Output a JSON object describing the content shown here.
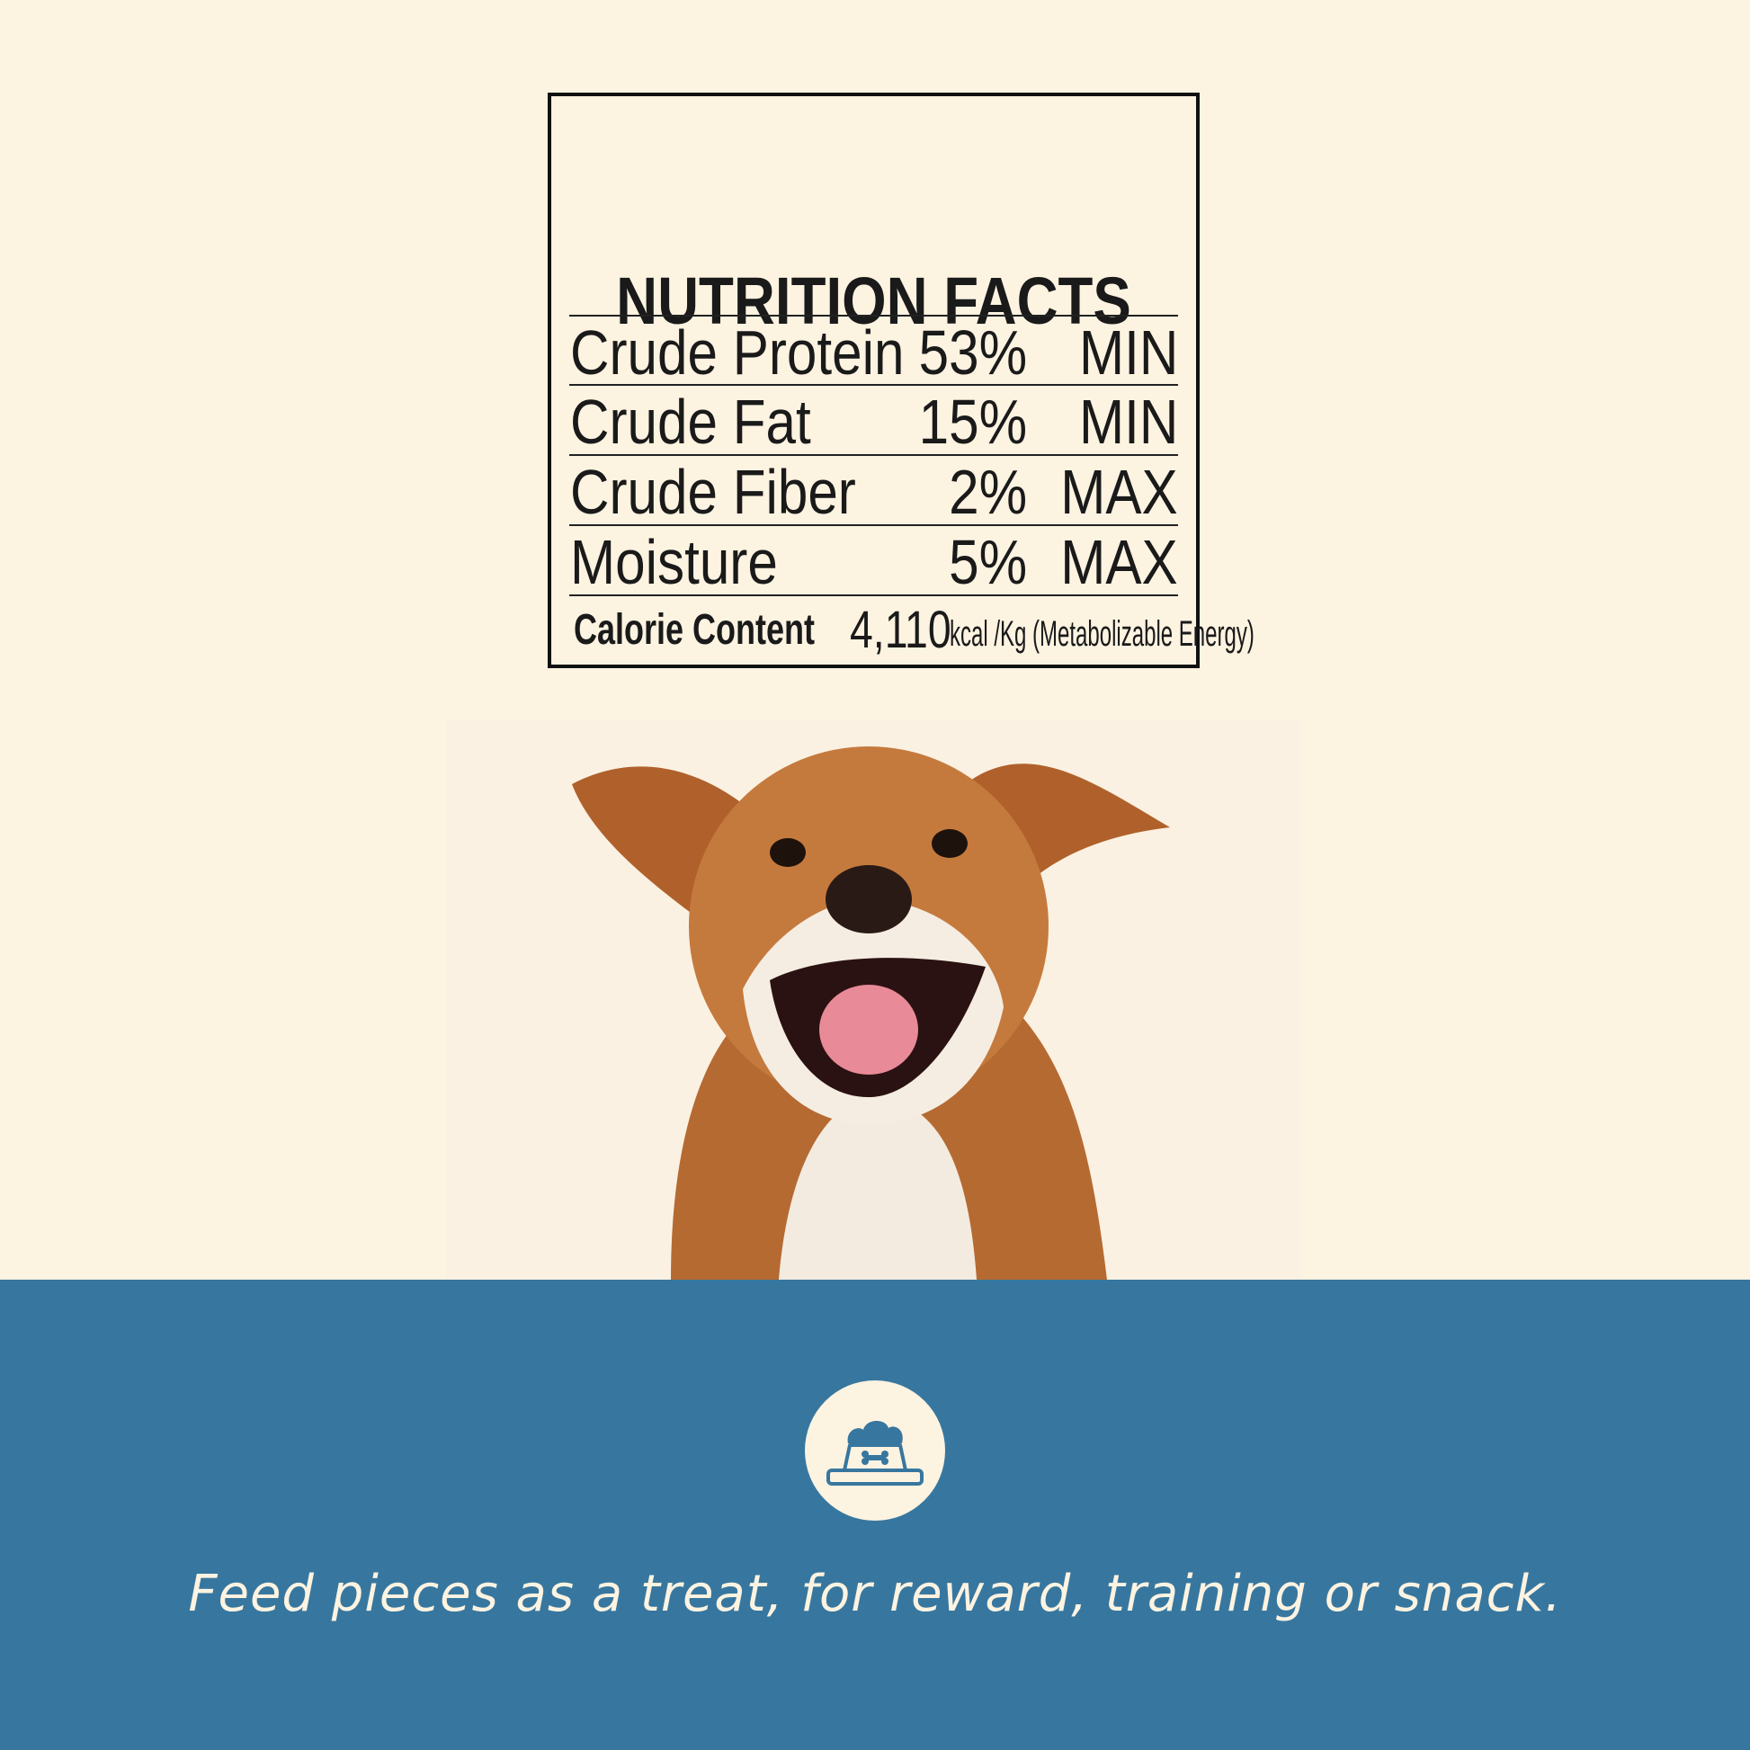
{
  "nutrition": {
    "title": "NUTRITION FACTS",
    "rows": [
      {
        "label": "Crude Protein",
        "value": "53%",
        "unit": "MIN"
      },
      {
        "label": "Crude Fat",
        "value": "15%",
        "unit": "MIN"
      },
      {
        "label": "Crude Fiber",
        "value": "2%",
        "unit": "MAX"
      },
      {
        "label": "Moisture",
        "value": "5%",
        "unit": "MAX"
      }
    ],
    "calorie": {
      "label": "Calorie Content",
      "value": "4,110",
      "unit": "kcal /Kg (Metabolizable Energy)"
    }
  },
  "footer": {
    "icon": "dog-food-bowl-icon",
    "tagline": "Feed pieces as a treat, for reward, training or snack."
  },
  "colors": {
    "background": "#fdf3e1",
    "band": "#37779f",
    "text": "#1a1a1a"
  }
}
